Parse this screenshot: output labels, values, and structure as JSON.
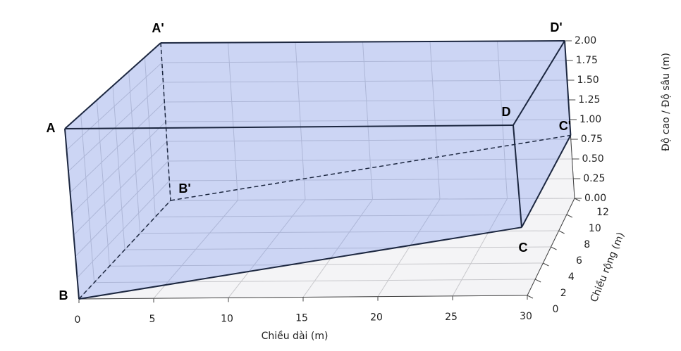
{
  "chart_data": {
    "type": "box3d",
    "xlabel": "Chiều dài (m)",
    "ylabel": "Chiều rộng (m)",
    "zlabel": "Độ cao / Độ sâu (m)",
    "xlim": [
      0,
      30
    ],
    "ylim": [
      0,
      12
    ],
    "zlim": [
      0,
      2
    ],
    "xticks": [
      0,
      5,
      10,
      15,
      20,
      25,
      30
    ],
    "yticks": [
      0,
      2,
      4,
      6,
      8,
      10,
      12
    ],
    "zticks": [
      {
        "value": 0,
        "label": "0.00"
      },
      {
        "value": 0.25,
        "label": "0.25"
      },
      {
        "value": 0.5,
        "label": "0.50"
      },
      {
        "value": 0.75,
        "label": "0.75"
      },
      {
        "value": 1,
        "label": "1.00"
      },
      {
        "value": 1.25,
        "label": "1.25"
      },
      {
        "value": 1.5,
        "label": "1.50"
      },
      {
        "value": 1.75,
        "label": "1.75"
      },
      {
        "value": 2,
        "label": "2.00"
      }
    ],
    "grid": true,
    "color": "#6d8ff5",
    "vertices": [
      {
        "label": "A",
        "x": 0,
        "y": 0,
        "z": 2
      },
      {
        "label": "B",
        "x": 0,
        "y": 0,
        "z": 0
      },
      {
        "label": "C",
        "x": 30,
        "y": 0,
        "z": 0.8
      },
      {
        "label": "D",
        "x": 30,
        "y": 0,
        "z": 2
      },
      {
        "label": "A'",
        "x": 0,
        "y": 12,
        "z": 2
      },
      {
        "label": "B'",
        "x": 0,
        "y": 12,
        "z": 0
      },
      {
        "label": "C'",
        "x": 30,
        "y": 12,
        "z": 0.8
      },
      {
        "label": "D'",
        "x": 30,
        "y": 12,
        "z": 2
      }
    ]
  }
}
